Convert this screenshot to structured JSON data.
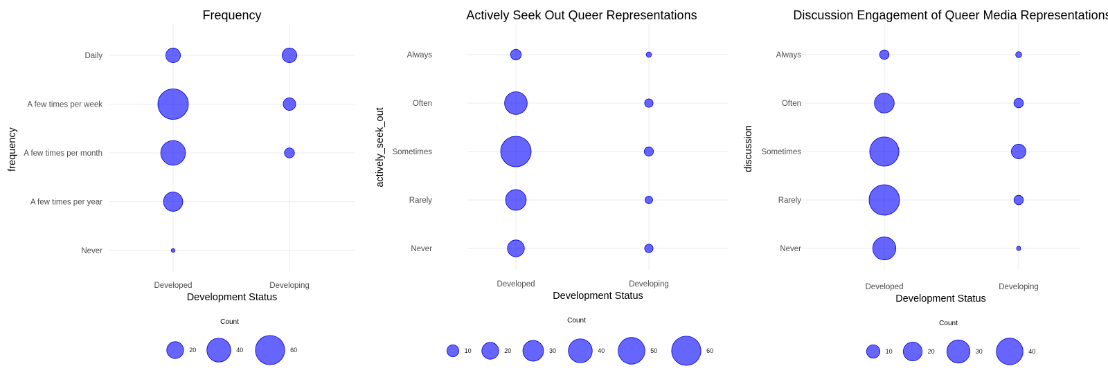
{
  "colors": {
    "bubble_fill": "#0000FF",
    "grid": "#ebebeb",
    "tick_text": "#4d4d4d"
  },
  "chart_data": [
    {
      "type": "scatter",
      "title": "Frequency",
      "xlabel": "Development Status",
      "ylabel": "frequency",
      "categories_x": [
        "Developed",
        "Developing"
      ],
      "categories_y": [
        "Never",
        "A few times per year",
        "A few times per month",
        "A few times per week",
        "Daily"
      ],
      "points": [
        {
          "x": "Developed",
          "y": "Daily",
          "count": 15
        },
        {
          "x": "Developed",
          "y": "A few times per week",
          "count": 65
        },
        {
          "x": "Developed",
          "y": "A few times per month",
          "count": 43
        },
        {
          "x": "Developed",
          "y": "A few times per year",
          "count": 26
        },
        {
          "x": "Developed",
          "y": "Never",
          "count": 1
        },
        {
          "x": "Developing",
          "y": "Daily",
          "count": 15
        },
        {
          "x": "Developing",
          "y": "A few times per week",
          "count": 11
        },
        {
          "x": "Developing",
          "y": "A few times per month",
          "count": 7
        },
        {
          "x": "Developing",
          "y": "A few times per year",
          "count": 0
        },
        {
          "x": "Developing",
          "y": "Never",
          "count": 0
        }
      ],
      "legend": {
        "title": "Count",
        "breaks": [
          20,
          40,
          60
        ],
        "position": "bottom"
      },
      "grid": true
    },
    {
      "type": "scatter",
      "title": "Actively Seek Out Queer Representations",
      "xlabel": "Development Status",
      "ylabel": "actively_seek_out",
      "categories_x": [
        "Developed",
        "Developing"
      ],
      "categories_y": [
        "Never",
        "Rarely",
        "Sometimes",
        "Often",
        "Always"
      ],
      "points": [
        {
          "x": "Developed",
          "y": "Always",
          "count": 8
        },
        {
          "x": "Developed",
          "y": "Often",
          "count": 36
        },
        {
          "x": "Developed",
          "y": "Sometimes",
          "count": 65
        },
        {
          "x": "Developed",
          "y": "Rarely",
          "count": 30
        },
        {
          "x": "Developed",
          "y": "Never",
          "count": 20
        },
        {
          "x": "Developing",
          "y": "Always",
          "count": 2
        },
        {
          "x": "Developing",
          "y": "Often",
          "count": 5
        },
        {
          "x": "Developing",
          "y": "Sometimes",
          "count": 6
        },
        {
          "x": "Developing",
          "y": "Rarely",
          "count": 4
        },
        {
          "x": "Developing",
          "y": "Never",
          "count": 5
        }
      ],
      "legend": {
        "title": "Count",
        "breaks": [
          10,
          20,
          30,
          40,
          50,
          60
        ],
        "position": "bottom"
      },
      "grid": true
    },
    {
      "type": "scatter",
      "title": "Discussion Engagement of Queer Media Representations",
      "xlabel": "Development Status",
      "ylabel": "discussion",
      "categories_x": [
        "Developed",
        "Developing"
      ],
      "categories_y": [
        "Never",
        "Rarely",
        "Sometimes",
        "Often",
        "Always"
      ],
      "points": [
        {
          "x": "Developed",
          "y": "Always",
          "count": 5
        },
        {
          "x": "Developed",
          "y": "Often",
          "count": 22
        },
        {
          "x": "Developed",
          "y": "Sometimes",
          "count": 48
        },
        {
          "x": "Developed",
          "y": "Rarely",
          "count": 52
        },
        {
          "x": "Developed",
          "y": "Never",
          "count": 30
        },
        {
          "x": "Developing",
          "y": "Always",
          "count": 2
        },
        {
          "x": "Developing",
          "y": "Often",
          "count": 5
        },
        {
          "x": "Developing",
          "y": "Sometimes",
          "count": 12
        },
        {
          "x": "Developing",
          "y": "Rarely",
          "count": 5
        },
        {
          "x": "Developing",
          "y": "Never",
          "count": 1
        }
      ],
      "legend": {
        "title": "Count",
        "breaks": [
          10,
          20,
          30,
          40
        ],
        "position": "bottom"
      },
      "grid": true
    }
  ]
}
